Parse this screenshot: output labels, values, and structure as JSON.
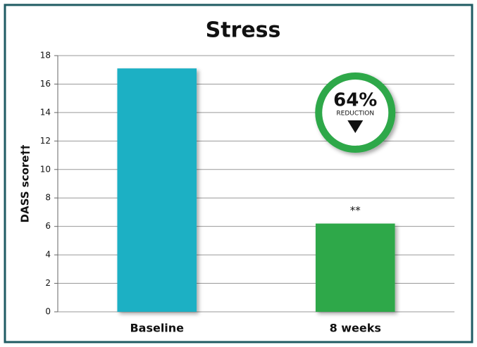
{
  "chart_data": {
    "type": "bar",
    "title": "Stress",
    "y_label": "DASS score††",
    "categories": [
      "Baseline",
      "8 weeks"
    ],
    "values": [
      17.1,
      6.2
    ],
    "colors": [
      "#1fb0c4",
      "#2ea84a"
    ],
    "ylim": [
      0,
      18
    ],
    "yticks": [
      0,
      2,
      4,
      6,
      8,
      10,
      12,
      14,
      16,
      18
    ],
    "grid": true,
    "bar_annotations": [
      "",
      "**"
    ],
    "badge": {
      "value_text": "64%",
      "label": "REDUCTION",
      "color": "#2ea84a"
    }
  }
}
